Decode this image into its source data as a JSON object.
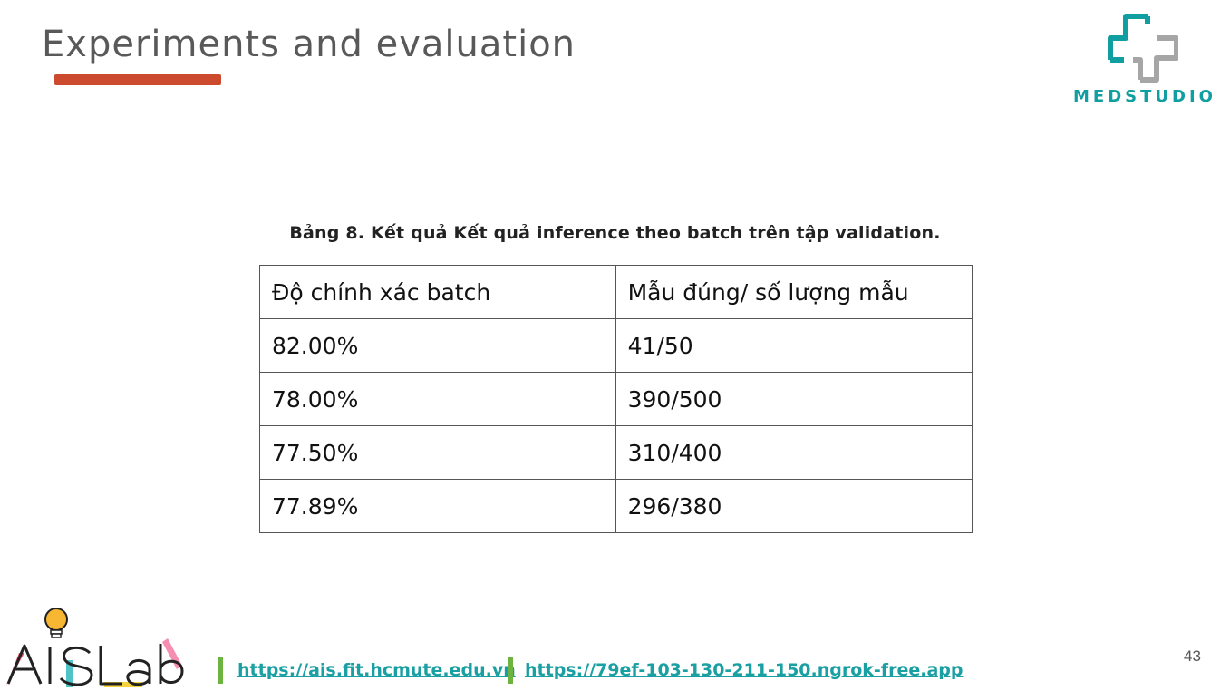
{
  "slide": {
    "title": "Experiments and evaluation",
    "page_number": "43"
  },
  "logo": {
    "brand_text": "MEDSTUDIO",
    "colors": {
      "teal": "#109ea1",
      "gray": "#a6a6a6"
    }
  },
  "table": {
    "caption": "Bảng 8. Kết quả Kết quả inference theo batch trên tập validation.",
    "headers": [
      "Độ chính xác batch",
      "Mẫu đúng/ số lượng mẫu"
    ],
    "rows": [
      [
        "82.00%",
        "41/50"
      ],
      [
        "78.00%",
        "390/500"
      ],
      [
        "77.50%",
        "310/400"
      ],
      [
        "77.89%",
        "296/380"
      ]
    ]
  },
  "footer": {
    "lab_logo_text": "AISLab",
    "links": [
      "https://ais.fit.hcmute.edu.vn",
      "https://79ef-103-130-211-150.ngrok-free.app"
    ]
  },
  "colors": {
    "title_underline": "#cc4a2d",
    "link": "#1a9fa3",
    "separator": "#6db33f"
  }
}
